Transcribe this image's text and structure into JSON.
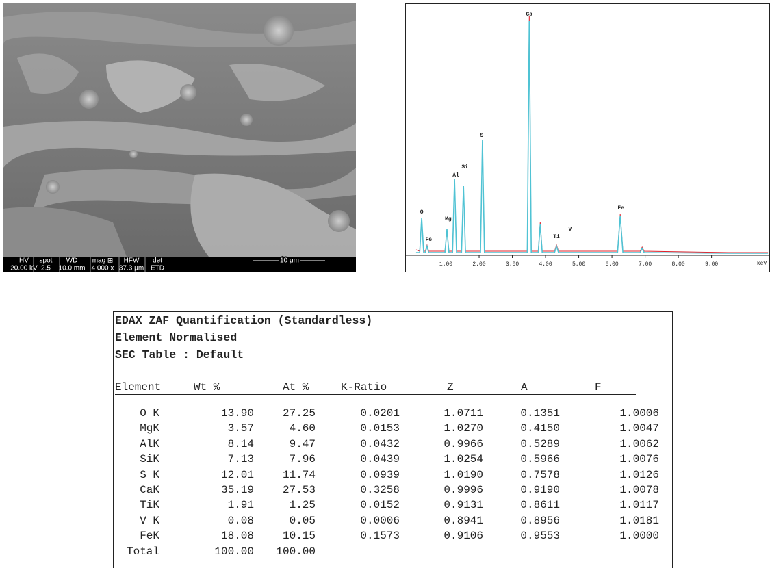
{
  "sem": {
    "info_bar": {
      "headers": [
        "HV",
        "spot",
        "WD",
        "mag ⊞",
        "HFW",
        "det"
      ],
      "values": [
        "20.00 kV",
        "2.5",
        "10.0 mm",
        "4 000 x",
        "37.3 μm",
        "ETD"
      ]
    },
    "scale_bar": "10 μm"
  },
  "chart_data": {
    "type": "line",
    "x_label": "keV",
    "xlim": [
      0,
      10.76
    ],
    "ylim": [
      0,
      368
    ],
    "xticks": [
      {
        "value": 1,
        "label": "1.00"
      },
      {
        "value": 2,
        "label": "2.00"
      },
      {
        "value": 3,
        "label": "3.00"
      },
      {
        "value": 4,
        "label": "4.00"
      },
      {
        "value": 5,
        "label": "5.00"
      },
      {
        "value": 6,
        "label": "6.00"
      },
      {
        "value": 7,
        "label": "7.00"
      },
      {
        "value": 8,
        "label": "8.00"
      },
      {
        "value": 9,
        "label": "9.00"
      }
    ],
    "x": [
      0.1,
      0.21,
      0.27,
      0.33,
      0.38,
      0.43,
      0.48,
      0.97,
      1.03,
      1.09,
      1.2,
      1.26,
      1.32,
      1.47,
      1.53,
      1.59,
      2.04,
      2.1,
      2.16,
      3.45,
      3.51,
      3.57,
      3.78,
      3.84,
      3.9,
      4.27,
      4.33,
      4.39,
      6.17,
      6.25,
      6.33,
      6.85,
      6.91,
      6.97,
      9.5,
      10.7
    ],
    "series": [
      {
        "color": "#e0202a",
        "values": [
          8,
          6,
          52,
          6,
          6,
          15,
          6,
          6,
          36,
          6,
          6,
          108,
          6,
          6,
          98,
          6,
          6,
          165,
          6,
          6,
          350,
          6,
          6,
          48,
          6,
          6,
          15,
          6,
          6,
          60,
          6,
          6,
          12,
          6,
          4,
          4
        ]
      },
      {
        "color": "#4fc3d4",
        "values": [
          4,
          4,
          55,
          4,
          4,
          13,
          4,
          4,
          38,
          4,
          4,
          111,
          4,
          4,
          101,
          4,
          4,
          168,
          4,
          4,
          343,
          4,
          4,
          45,
          4,
          4,
          13,
          4,
          4,
          58,
          4,
          4,
          10,
          4,
          3,
          3
        ]
      }
    ],
    "annotations": [
      {
        "text": "O",
        "x": 0.27,
        "y": 58
      },
      {
        "text": "Fe",
        "x": 0.48,
        "y": 18
      },
      {
        "text": "Mg",
        "x": 1.07,
        "y": 48
      },
      {
        "text": "Al",
        "x": 1.3,
        "y": 112
      },
      {
        "text": "Si",
        "x": 1.57,
        "y": 124
      },
      {
        "text": "S",
        "x": 2.08,
        "y": 170
      },
      {
        "text": "Ca",
        "x": 3.51,
        "y": 347
      },
      {
        "text": "Ti",
        "x": 4.33,
        "y": 22
      },
      {
        "text": "V",
        "x": 4.74,
        "y": 33
      },
      {
        "text": "Fe",
        "x": 6.27,
        "y": 64
      }
    ]
  },
  "table": {
    "title_lines": [
      "EDAX ZAF Quantification (Standardless)",
      "Element Normalised",
      "SEC Table : Default"
    ],
    "columns": [
      "Element",
      "Wt %",
      "At %",
      "K-Ratio",
      "Z",
      "A",
      "F"
    ],
    "rows": [
      [
        "O K",
        "13.90",
        "27.25",
        "0.0201",
        "1.0711",
        "0.1351",
        "1.0006"
      ],
      [
        "MgK",
        "3.57",
        "4.60",
        "0.0153",
        "1.0270",
        "0.4150",
        "1.0047"
      ],
      [
        "AlK",
        "8.14",
        "9.47",
        "0.0432",
        "0.9966",
        "0.5289",
        "1.0062"
      ],
      [
        "SiK",
        "7.13",
        "7.96",
        "0.0439",
        "1.0254",
        "0.5966",
        "1.0076"
      ],
      [
        "S K",
        "12.01",
        "11.74",
        "0.0939",
        "1.0190",
        "0.7578",
        "1.0126"
      ],
      [
        "CaK",
        "35.19",
        "27.53",
        "0.3258",
        "0.9996",
        "0.9190",
        "1.0078"
      ],
      [
        "TiK",
        "1.91",
        "1.25",
        "0.0152",
        "0.9131",
        "0.8611",
        "1.0117"
      ],
      [
        "V K",
        "0.08",
        "0.05",
        "0.0006",
        "0.8941",
        "0.8956",
        "1.0181"
      ],
      [
        "FeK",
        "18.08",
        "10.15",
        "0.1573",
        "0.9106",
        "0.9553",
        "1.0000"
      ],
      [
        "Total",
        "100.00",
        "100.00"
      ]
    ]
  }
}
